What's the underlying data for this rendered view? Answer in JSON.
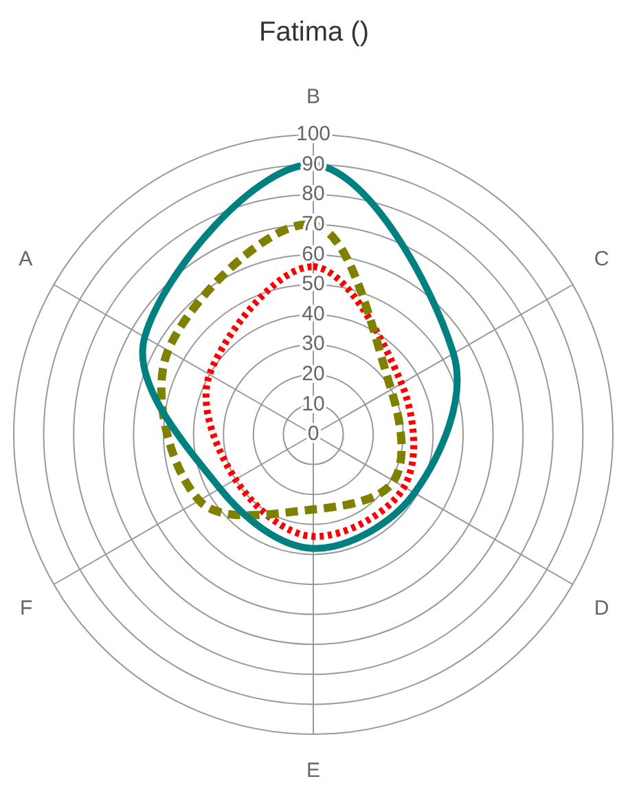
{
  "chart_data": {
    "type": "radar",
    "title": "Fatima ()",
    "categories": [
      "B",
      "C",
      "D",
      "E",
      "F",
      "A"
    ],
    "ylim": [
      0,
      100
    ],
    "yticks": [
      0,
      10,
      20,
      30,
      40,
      50,
      60,
      70,
      80,
      90,
      100
    ],
    "grid": true,
    "legend": false,
    "marker": "none",
    "series": [
      {
        "color": "#008080",
        "line_style": "solid",
        "values": [
          90,
          54,
          39,
          38,
          36,
          65
        ]
      },
      {
        "color": "#808000",
        "line_style": "dashed",
        "values": [
          70,
          30,
          31,
          25,
          44,
          56
        ]
      },
      {
        "color": "#ff0000",
        "line_style": "dotted",
        "values": [
          56,
          34,
          35,
          34,
          30,
          40
        ]
      }
    ]
  }
}
